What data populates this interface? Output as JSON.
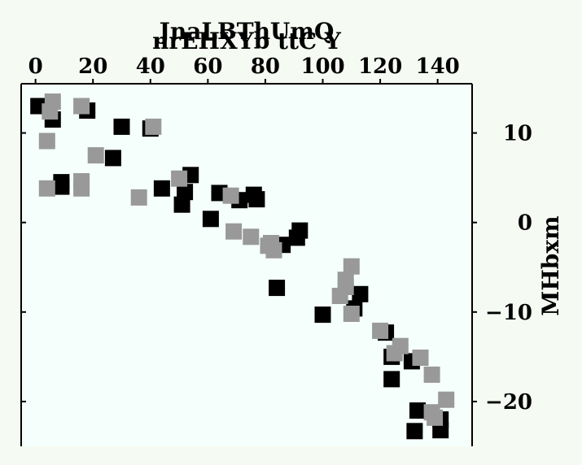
{
  "chart_data": {
    "type": "scatter",
    "title": "JnaLBThUmQ",
    "xlabel": "nrEHXYb ttC Y",
    "ylabel": "MHbxm",
    "xlim": [
      -5,
      152
    ],
    "ylim": [
      -25,
      15.5
    ],
    "x_ticks": [
      0,
      20,
      40,
      60,
      80,
      100,
      120,
      140
    ],
    "y_ticks": [
      10,
      0,
      -10,
      -20
    ],
    "x_tick_labels": [
      "0",
      "20",
      "40",
      "60",
      "80",
      "100",
      "120",
      "140"
    ],
    "y_tick_labels": [
      "10",
      "0",
      "−10",
      "−20"
    ],
    "x_axis_position": "top",
    "y_axis_position": "right",
    "grid": false,
    "plot_background": "#f5fffc",
    "page_background": "#f5faf2",
    "series": [
      {
        "color": "#000000",
        "marker": "square",
        "points": [
          [
            1,
            13
          ],
          [
            6,
            11.5
          ],
          [
            18,
            12.5
          ],
          [
            30,
            10.7
          ],
          [
            40,
            10.5
          ],
          [
            9,
            4.5
          ],
          [
            9,
            4
          ],
          [
            27,
            7.2
          ],
          [
            44,
            3.8
          ],
          [
            52,
            3.4
          ],
          [
            54,
            5.3
          ],
          [
            51,
            2
          ],
          [
            61,
            0.4
          ],
          [
            64,
            3.3
          ],
          [
            71,
            2.5
          ],
          [
            76,
            3.1
          ],
          [
            77,
            2.6
          ],
          [
            86,
            -2.5
          ],
          [
            91,
            -1.7
          ],
          [
            92,
            -0.9
          ],
          [
            84,
            -7.3
          ],
          [
            100,
            -10.3
          ],
          [
            111,
            -9.6
          ],
          [
            113,
            -8
          ],
          [
            122,
            -12.3
          ],
          [
            124,
            -15
          ],
          [
            131,
            -15.5
          ],
          [
            124,
            -17.5
          ],
          [
            133,
            -21
          ],
          [
            141,
            -22
          ],
          [
            132,
            -23.3
          ],
          [
            141,
            -23.2
          ]
        ]
      },
      {
        "color": "#999999",
        "marker": "square",
        "points": [
          [
            6,
            13.5
          ],
          [
            5,
            12.4
          ],
          [
            16,
            13
          ],
          [
            41,
            10.7
          ],
          [
            4,
            9.1
          ],
          [
            21,
            7.5
          ],
          [
            4,
            3.8
          ],
          [
            16,
            4.6
          ],
          [
            16,
            3.8
          ],
          [
            36,
            2.8
          ],
          [
            50,
            4.9
          ],
          [
            68,
            3
          ],
          [
            69,
            -1
          ],
          [
            75,
            -1.6
          ],
          [
            81,
            -2.6
          ],
          [
            82,
            -2.3
          ],
          [
            83,
            -3.1
          ],
          [
            110,
            -4.9
          ],
          [
            108,
            -6.4
          ],
          [
            108,
            -7.2
          ],
          [
            106,
            -8.2
          ],
          [
            110,
            -10.2
          ],
          [
            120,
            -12.1
          ],
          [
            127,
            -13.8
          ],
          [
            125,
            -14.6
          ],
          [
            134,
            -15.1
          ],
          [
            138,
            -17
          ],
          [
            143,
            -19.8
          ],
          [
            138,
            -21.2
          ],
          [
            139,
            -21.8
          ]
        ]
      }
    ]
  }
}
